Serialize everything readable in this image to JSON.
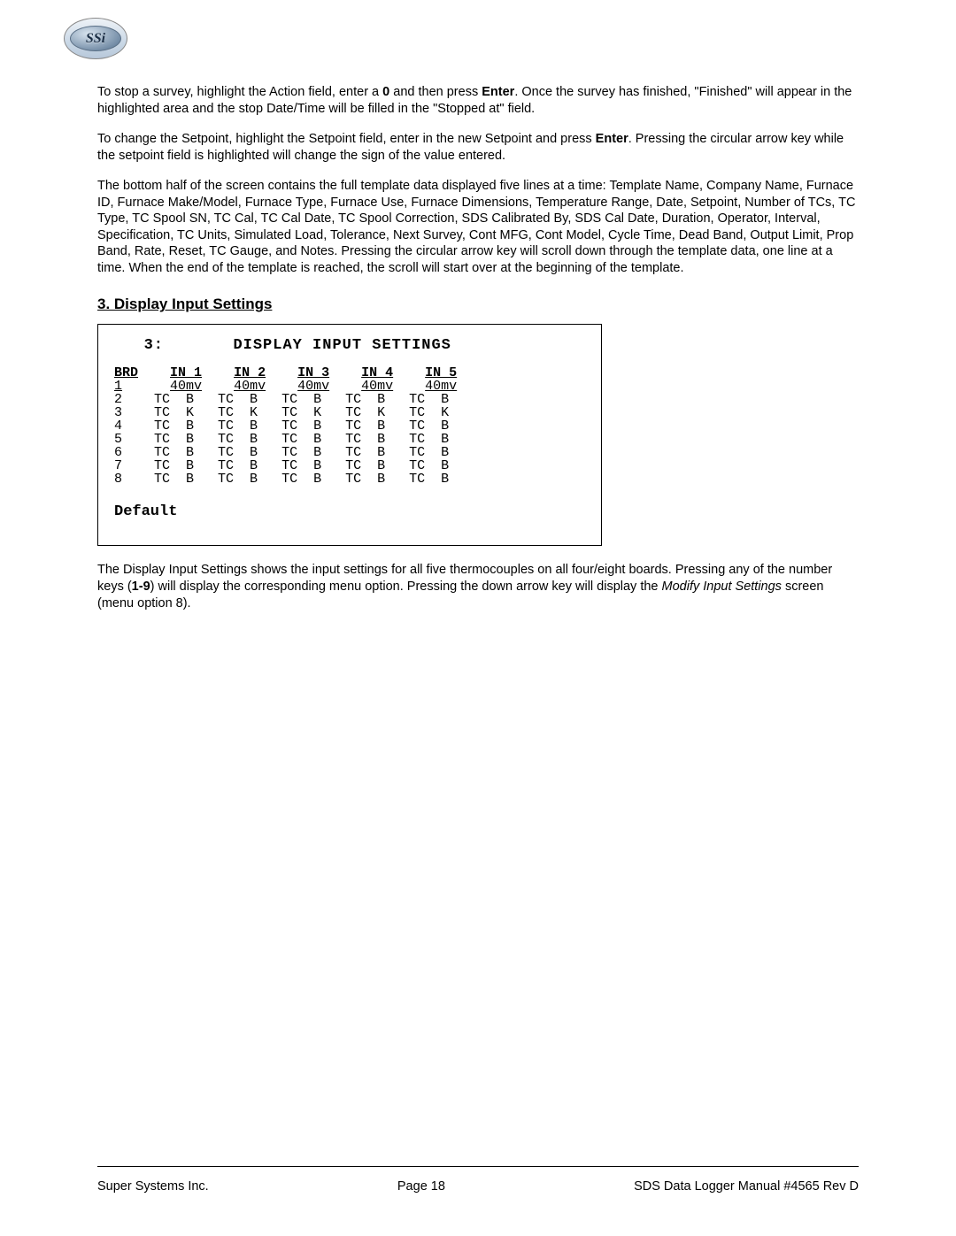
{
  "logo": {
    "text": "SSi"
  },
  "paragraphs": {
    "p1_a": "To stop a survey, highlight the Action field, enter a ",
    "p1_zero": "0",
    "p1_b": " and then press ",
    "p1_enter": "Enter",
    "p1_c": ".  Once the survey has finished, \"Finished\" will appear in the highlighted area and the stop Date/Time will be filled in the \"Stopped at\" field.",
    "p2_a": "To change the Setpoint, highlight the Setpoint field, enter in the new Setpoint and press ",
    "p2_enter": "Enter",
    "p2_b": ".  Pressing the circular arrow key while the setpoint field is highlighted will change the sign of the value entered.",
    "p3": "The bottom half of the screen contains the full template data displayed five lines at a time: Template Name, Company Name, Furnace ID, Furnace Make/Model, Furnace Type, Furnace Use, Furnace Dimensions, Temperature Range, Date, Setpoint, Number of TCs, TC Type, TC Spool SN, TC Cal, TC Cal Date, TC Spool Correction, SDS Calibrated By, SDS Cal Date, Duration, Operator, Interval, Specification, TC Units, Simulated Load, Tolerance, Next Survey, Cont MFG, Cont Model, Cycle Time, Dead Band, Output Limit, Prop Band, Rate, Reset, TC Gauge, and Notes.  Pressing the circular arrow key will scroll down through the template data, one line at a time.  When the end of the template is reached, the scroll will start over at the beginning of the template.",
    "p4_a": "The Display Input Settings shows the input settings for all five thermocouples on all four/eight boards.  Pressing any of the number keys (",
    "p4_keys": "1-9",
    "p4_b": ") will display the corresponding menu option.  Pressing the down arrow key will display the ",
    "p4_italic": "Modify Input Settings",
    "p4_c": " screen (menu option 8)."
  },
  "section_heading": "3. Display Input Settings",
  "screen": {
    "title_num": "3:",
    "title_text": "DISPLAY INPUT SETTINGS",
    "brd_label": "BRD",
    "boards": [
      "1",
      "2",
      "3",
      "4",
      "5",
      "6",
      "7",
      "8"
    ],
    "input_headers": [
      "IN 1",
      "IN 2",
      "IN 3",
      "IN 4",
      "IN 5"
    ],
    "sub_header": "40mv",
    "cells": {
      "col_sensor": "TC",
      "row_types": [
        "B",
        "K",
        "B",
        "B",
        "B",
        "B",
        "B"
      ]
    },
    "default_label": "Default"
  },
  "footer": {
    "left": "Super Systems Inc.",
    "center": "Page 18",
    "right": "SDS Data Logger Manual #4565 Rev D"
  }
}
